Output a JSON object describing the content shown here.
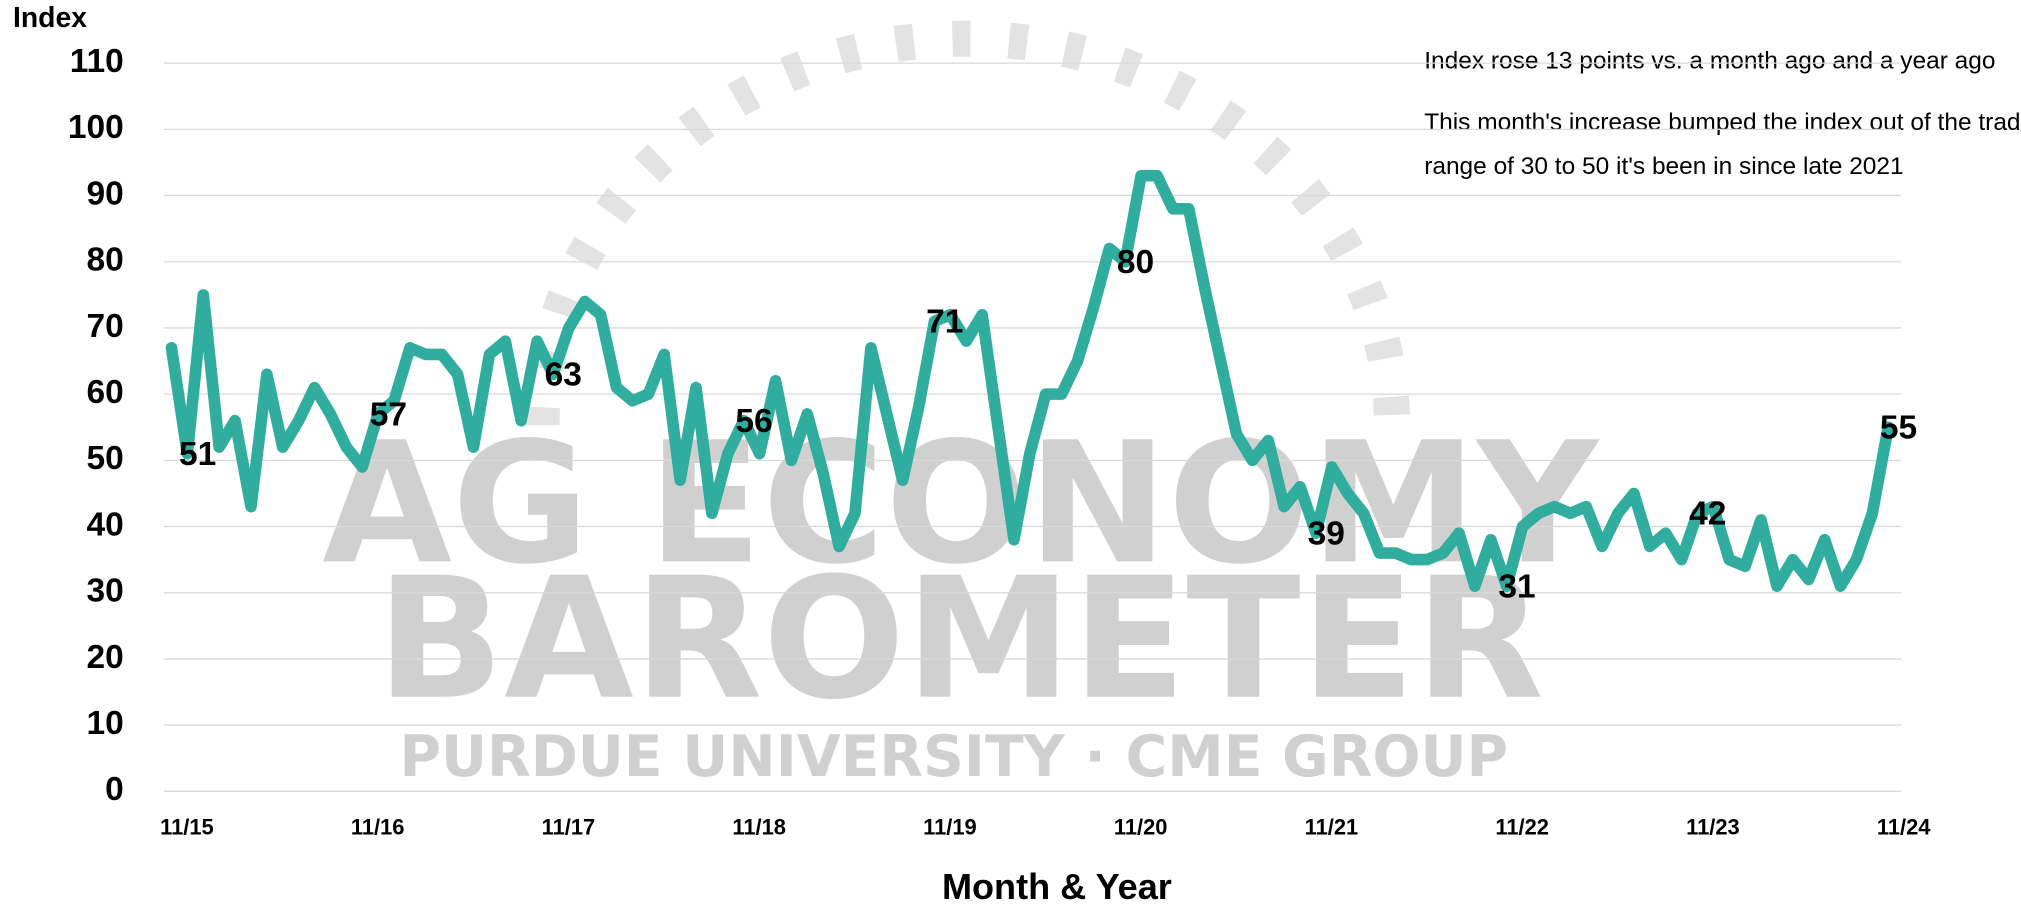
{
  "chart_data": {
    "type": "line",
    "y_label": "Index",
    "x_label": "Month & Year",
    "annotations": [
      "Index rose 13 points vs. a month ago and a year ago",
      "This month's increase bumped the index out of the trading",
      "range of 30 to 50 it's been in since late 2021"
    ],
    "watermark": [
      "AG ECONOMY",
      "BAROMETER",
      "PURDUE UNIVERSITY  ·  CME GROUP"
    ],
    "categories": [
      "11/15",
      null,
      null,
      null,
      null,
      null,
      null,
      null,
      null,
      null,
      null,
      null,
      "11/16",
      null,
      null,
      null,
      null,
      null,
      null,
      null,
      null,
      null,
      null,
      null,
      "11/17",
      null,
      null,
      null,
      null,
      null,
      null,
      null,
      null,
      null,
      null,
      null,
      "11/18",
      null,
      null,
      null,
      null,
      null,
      null,
      null,
      null,
      null,
      null,
      null,
      "11/19",
      null,
      null,
      null,
      null,
      null,
      null,
      null,
      null,
      null,
      null,
      null,
      "11/20",
      null,
      null,
      null,
      null,
      null,
      null,
      null,
      null,
      null,
      null,
      null,
      "11/21",
      null,
      null,
      null,
      null,
      null,
      null,
      null,
      null,
      null,
      null,
      null,
      "11/22",
      null,
      null,
      null,
      null,
      null,
      null,
      null,
      null,
      null,
      null,
      null,
      "11/23",
      null,
      null,
      null,
      null,
      null,
      null,
      null,
      null,
      null,
      null,
      null,
      "11/24"
    ],
    "series": [
      {
        "name": "Index",
        "color": "#30ad9f",
        "values": [
          67,
          51,
          75,
          52,
          56,
          43,
          63,
          52,
          56,
          61,
          57,
          52,
          49,
          57,
          59,
          67,
          66,
          66,
          63,
          52,
          66,
          68,
          56,
          68,
          63,
          70,
          74,
          72,
          61,
          59,
          60,
          66,
          47,
          61,
          42,
          51,
          56,
          51,
          62,
          50,
          57,
          48,
          37,
          42,
          67,
          57,
          47,
          58,
          71,
          72,
          68,
          72,
          55,
          38,
          51,
          60,
          60,
          65,
          73,
          82,
          80,
          93,
          93,
          88,
          88,
          76,
          65,
          54,
          50,
          53,
          43,
          46,
          39,
          49,
          45,
          42,
          36,
          36,
          35,
          35,
          36,
          39,
          31,
          38,
          31,
          40,
          42,
          43,
          42,
          43,
          37,
          42,
          45,
          37,
          39,
          35,
          42,
          43,
          35,
          34,
          41,
          31,
          35,
          32,
          38,
          31,
          35,
          42,
          55
        ],
        "value_labels": [
          null,
          "51",
          null,
          null,
          null,
          null,
          null,
          null,
          null,
          null,
          null,
          null,
          null,
          "57",
          null,
          null,
          null,
          null,
          null,
          null,
          null,
          null,
          null,
          null,
          "63",
          null,
          null,
          null,
          null,
          null,
          null,
          null,
          null,
          null,
          null,
          null,
          "56",
          null,
          null,
          null,
          null,
          null,
          null,
          null,
          null,
          null,
          null,
          null,
          "71",
          null,
          null,
          null,
          null,
          null,
          null,
          null,
          null,
          null,
          null,
          null,
          "80",
          null,
          null,
          null,
          null,
          null,
          null,
          null,
          null,
          null,
          null,
          null,
          "39",
          null,
          null,
          null,
          null,
          null,
          null,
          null,
          null,
          null,
          null,
          null,
          "31",
          null,
          null,
          null,
          null,
          null,
          null,
          null,
          null,
          null,
          null,
          null,
          "42",
          null,
          null,
          null,
          null,
          null,
          null,
          null,
          null,
          null,
          null,
          null,
          "55"
        ]
      }
    ],
    "ylim": [
      0,
      110
    ],
    "yticks": [
      0,
      10,
      20,
      30,
      40,
      50,
      60,
      70,
      80,
      90,
      100,
      110
    ],
    "grid": true
  }
}
